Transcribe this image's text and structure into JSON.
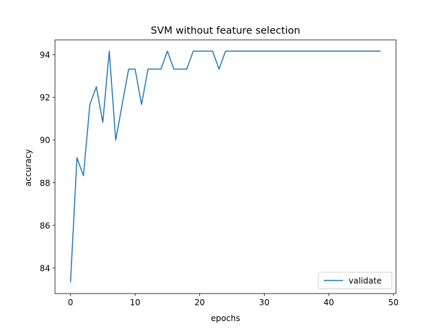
{
  "chart_data": {
    "type": "line",
    "title": "SVM without feature selection",
    "xlabel": "epochs",
    "ylabel": "accuracy",
    "xlim": [
      -2.4,
      50.4
    ],
    "ylim": [
      82.8,
      94.7
    ],
    "xticks": [
      0,
      10,
      20,
      30,
      40,
      50
    ],
    "yticks": [
      84,
      86,
      88,
      90,
      92,
      94
    ],
    "grid": false,
    "legend_position": "lower right",
    "series": [
      {
        "name": "validate",
        "color": "#1f77b4",
        "x": [
          0,
          1,
          2,
          3,
          4,
          5,
          6,
          7,
          8,
          9,
          10,
          11,
          12,
          13,
          14,
          15,
          16,
          17,
          18,
          19,
          20,
          21,
          22,
          23,
          24,
          25,
          26,
          27,
          28,
          29,
          30,
          31,
          32,
          33,
          34,
          35,
          36,
          37,
          38,
          39,
          40,
          41,
          42,
          43,
          44,
          45,
          46,
          47,
          48
        ],
        "values": [
          83.33,
          89.17,
          88.33,
          91.67,
          92.5,
          90.83,
          94.17,
          90.0,
          91.67,
          93.33,
          93.33,
          91.67,
          93.33,
          93.33,
          93.33,
          94.17,
          93.33,
          93.33,
          93.33,
          94.17,
          94.17,
          94.17,
          94.17,
          93.33,
          94.17,
          94.17,
          94.17,
          94.17,
          94.17,
          94.17,
          94.17,
          94.17,
          94.17,
          94.17,
          94.17,
          94.17,
          94.17,
          94.17,
          94.17,
          94.17,
          94.17,
          94.17,
          94.17,
          94.17,
          94.17,
          94.17,
          94.17,
          94.17,
          94.17
        ]
      }
    ]
  }
}
